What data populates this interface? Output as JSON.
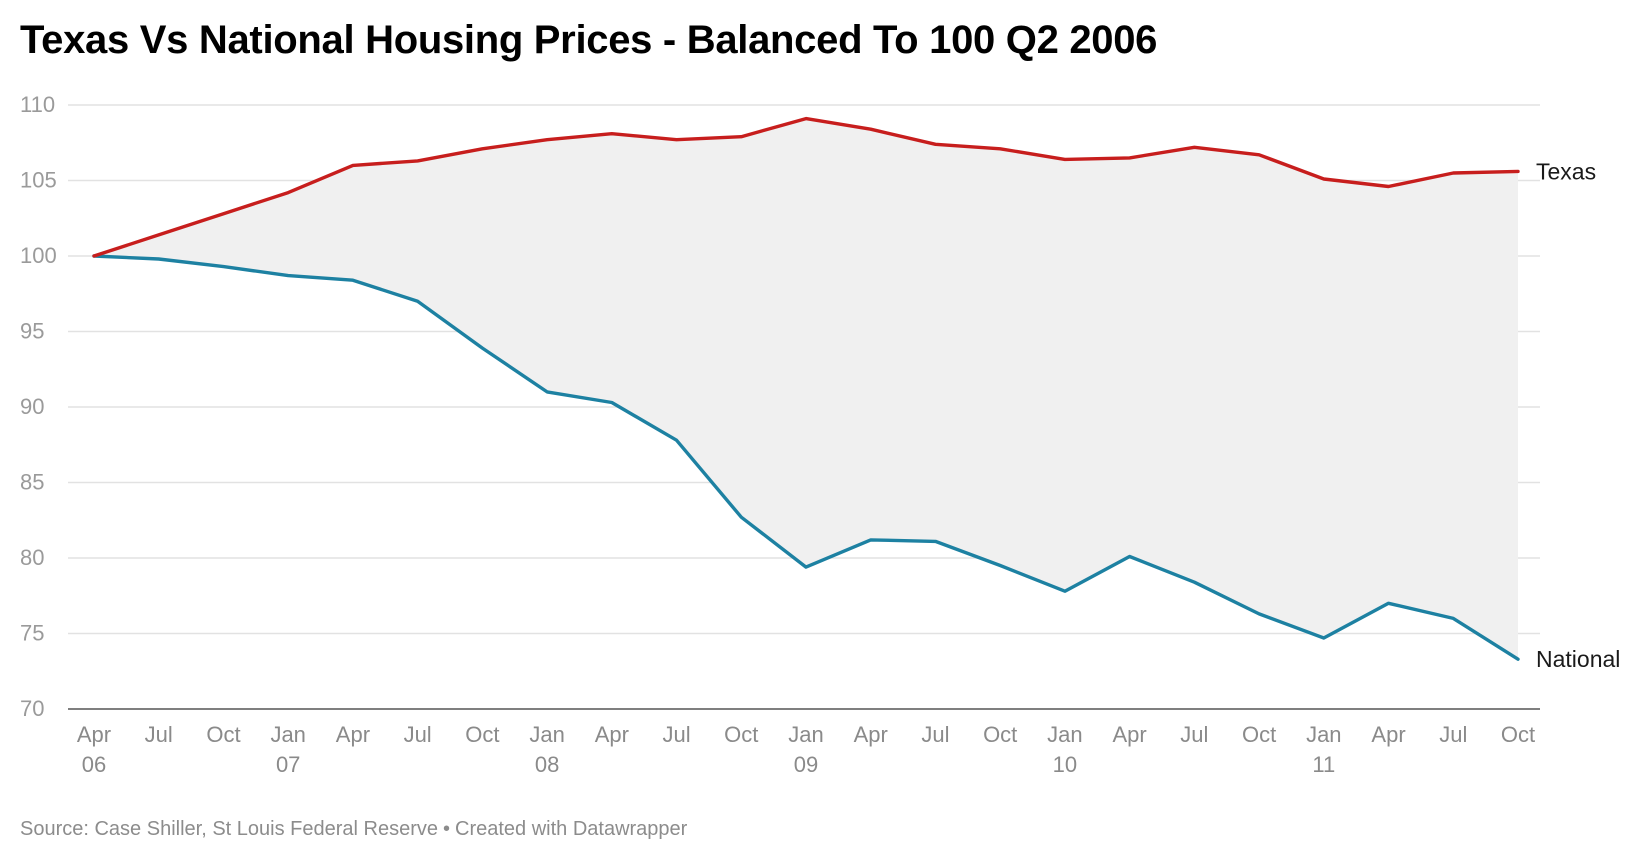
{
  "chart_data": {
    "type": "area",
    "title": "Texas Vs National Housing Prices - Balanced To 100 Q2 2006",
    "xlabel": "",
    "ylabel": "",
    "ylim": [
      70,
      110
    ],
    "yticks": [
      "110",
      "105",
      "100",
      "95",
      "90",
      "85",
      "80",
      "75",
      "70"
    ],
    "grid": true,
    "x_tick_labels": [
      {
        "line1": "Apr",
        "line2": "06"
      },
      {
        "line1": "Jul",
        "line2": ""
      },
      {
        "line1": "Oct",
        "line2": ""
      },
      {
        "line1": "Jan",
        "line2": "07"
      },
      {
        "line1": "Apr",
        "line2": ""
      },
      {
        "line1": "Jul",
        "line2": ""
      },
      {
        "line1": "Oct",
        "line2": ""
      },
      {
        "line1": "Jan",
        "line2": "08"
      },
      {
        "line1": "Apr",
        "line2": ""
      },
      {
        "line1": "Jul",
        "line2": ""
      },
      {
        "line1": "Oct",
        "line2": ""
      },
      {
        "line1": "Jan",
        "line2": "09"
      },
      {
        "line1": "Apr",
        "line2": ""
      },
      {
        "line1": "Jul",
        "line2": ""
      },
      {
        "line1": "Oct",
        "line2": ""
      },
      {
        "line1": "Jan",
        "line2": "10"
      },
      {
        "line1": "Apr",
        "line2": ""
      },
      {
        "line1": "Jul",
        "line2": ""
      },
      {
        "line1": "Oct",
        "line2": ""
      },
      {
        "line1": "Jan",
        "line2": "11"
      },
      {
        "line1": "Apr",
        "line2": ""
      },
      {
        "line1": "Jul",
        "line2": ""
      },
      {
        "line1": "Oct",
        "line2": ""
      }
    ],
    "x": [
      "2006-04",
      "2006-07",
      "2006-10",
      "2007-01",
      "2007-04",
      "2007-07",
      "2007-10",
      "2008-01",
      "2008-04",
      "2008-07",
      "2008-10",
      "2009-01",
      "2009-04",
      "2009-07",
      "2009-10",
      "2010-01",
      "2010-04",
      "2010-07",
      "2010-10",
      "2011-01",
      "2011-04",
      "2011-07",
      "2011-10"
    ],
    "series": [
      {
        "name": "Texas",
        "color": "#c71e1d",
        "values": [
          100,
          101.4,
          102.8,
          104.2,
          106.0,
          106.3,
          107.1,
          107.7,
          108.1,
          107.7,
          107.9,
          109.1,
          108.4,
          107.4,
          107.1,
          106.4,
          106.5,
          107.2,
          106.7,
          105.1,
          104.6,
          105.5,
          105.6
        ]
      },
      {
        "name": "National",
        "color": "#1d81a2",
        "values": [
          100,
          99.8,
          99.3,
          98.7,
          98.4,
          97.0,
          93.9,
          91.0,
          90.3,
          87.8,
          82.7,
          79.4,
          81.2,
          81.1,
          79.5,
          77.8,
          80.1,
          78.4,
          76.3,
          74.7,
          77.0,
          76.0,
          73.3
        ]
      }
    ],
    "fill_between_color": "#f0f0f0",
    "legend": "direct labels at line ends (right)"
  },
  "footer": {
    "source": "Source: Case Shiller, St Louis Federal Reserve",
    "separator": "•",
    "credit": "Created with Datawrapper"
  }
}
